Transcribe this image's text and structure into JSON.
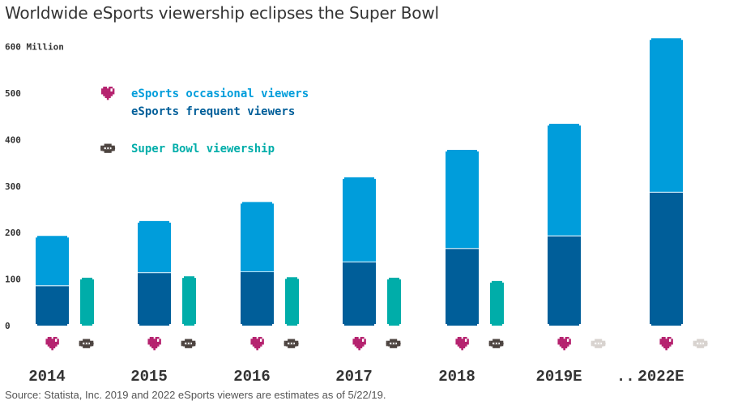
{
  "chart_data": {
    "type": "bar",
    "title": "Worldwide eSports viewership eclipses the Super Bowl",
    "ylabel_unit": "Million",
    "ylim": [
      0,
      600
    ],
    "yticks": [
      0,
      100,
      200,
      300,
      400,
      500,
      600
    ],
    "ytick_labels": [
      "0",
      "100",
      "200",
      "300",
      "400",
      "500",
      "600 Million"
    ],
    "categories": [
      "2014",
      "2015",
      "2016",
      "2017",
      "2018",
      "2019E",
      "2022E"
    ],
    "gap_label": "...",
    "series": [
      {
        "name": "eSports frequent viewers",
        "stack": "esports",
        "color": "#005e99",
        "values": [
          85,
          113,
          115,
          136,
          165,
          192,
          286
        ]
      },
      {
        "name": "eSports occasional viewers",
        "stack": "esports",
        "color": "#009ddb",
        "values": [
          108,
          112,
          151,
          183,
          213,
          242,
          332
        ]
      },
      {
        "name": "Super Bowl viewership",
        "stack": "superbowl",
        "color": "#00ada9",
        "values": [
          103,
          106,
          104,
          103,
          96,
          null,
          null
        ]
      }
    ],
    "esports_totals": [
      193,
      225,
      266,
      319,
      378,
      434,
      618
    ],
    "legend": {
      "placement": "top-left",
      "items": [
        {
          "label": "eSports occasional viewers",
          "color": "#009ddb",
          "icon": "heart-icon"
        },
        {
          "label": "eSports frequent viewers",
          "color": "#005e99",
          "icon": "heart-icon"
        },
        {
          "label": "Super Bowl viewership",
          "color": "#00ada9",
          "icon": "football-icon"
        }
      ]
    },
    "icons": {
      "heart_color": "#b5226f",
      "football_color": "#4d4440",
      "football_estimate_color": "#d8d3cf"
    },
    "grid": false
  },
  "source": "Source: Statista, Inc. 2019 and 2022 eSports viewers are estimates as of 5/22/19."
}
